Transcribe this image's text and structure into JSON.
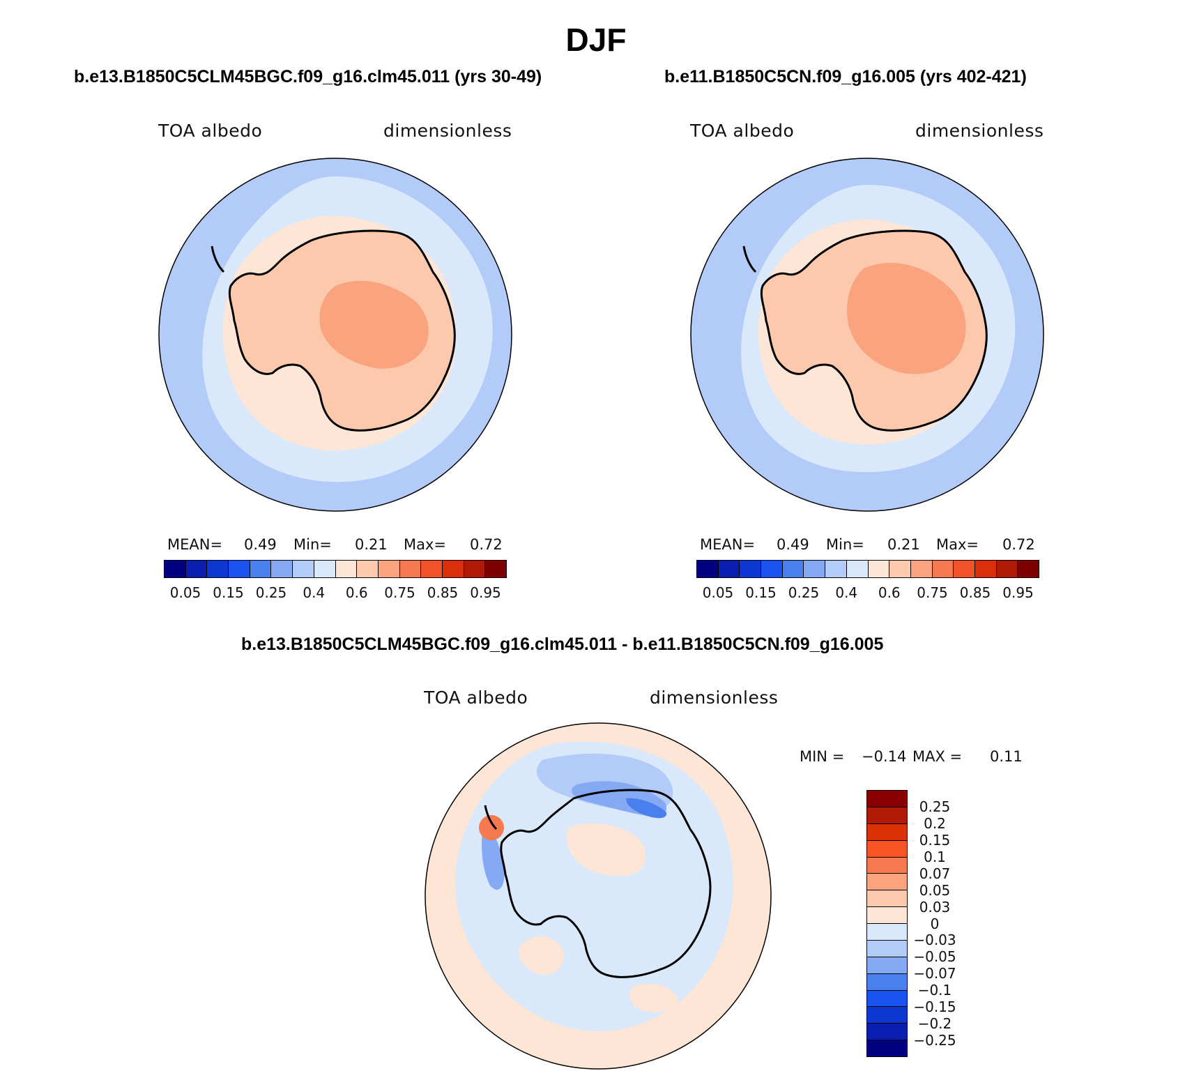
{
  "title": "DJF",
  "panels": [
    {
      "case_title": "b.e13.B1850C5CLM45BGC.f09_g16.clm45.011 (yrs 30-49)",
      "variable": "TOA albedo",
      "units": "dimensionless",
      "stats": {
        "mean_label": "MEAN=",
        "mean": "0.49",
        "min_label": "Min=",
        "min": "0.21",
        "max_label": "Max=",
        "max": "0.72"
      }
    },
    {
      "case_title": "b.e11.B1850C5CN.f09_g16.005 (yrs 402-421)",
      "variable": "TOA albedo",
      "units": "dimensionless",
      "stats": {
        "mean_label": "MEAN=",
        "mean": "0.49",
        "min_label": "Min=",
        "min": "0.21",
        "max_label": "Max=",
        "max": "0.72"
      }
    }
  ],
  "abs_colorbar": {
    "colors": [
      "#000080",
      "#0a1fb0",
      "#0c37d2",
      "#1a54f0",
      "#4a80ee",
      "#85aaf3",
      "#b2cbf8",
      "#d9e8fb",
      "#fde6d5",
      "#fdc9ac",
      "#f9a47f",
      "#f57a4f",
      "#f2532a",
      "#da2e0d",
      "#ae1a06",
      "#7c0000"
    ],
    "labels": [
      "0.05",
      "0.15",
      "0.25",
      "0.4",
      "0.6",
      "0.75",
      "0.85",
      "0.95"
    ]
  },
  "diff_panel": {
    "case_title": "b.e13.B1850C5CLM45BGC.f09_g16.clm45.011 - b.e11.B1850C5CN.f09_g16.005",
    "variable": "TOA albedo",
    "units": "dimensionless",
    "stats": {
      "min_label": "MIN =",
      "min": "−0.14",
      "max_label": "MAX =",
      "max": "0.11"
    }
  },
  "diff_colorbar": {
    "colors": [
      "#8a0000",
      "#b01a06",
      "#dc3006",
      "#fa5422",
      "#f57a4f",
      "#f9a47f",
      "#fdc9ac",
      "#fde6d5",
      "#d9e8fb",
      "#b2cbf8",
      "#85aaf3",
      "#4a80ee",
      "#1a54f0",
      "#0c37d2",
      "#0a1fb0",
      "#000080"
    ],
    "labels": [
      "0.25",
      "0.2",
      "0.15",
      "0.1",
      "0.07",
      "0.05",
      "0.03",
      "0",
      "−0.03",
      "−0.05",
      "−0.07",
      "−0.1",
      "−0.15",
      "−0.2",
      "−0.25"
    ]
  },
  "map_colors": {
    "outer_ocean": "#b2cbf8",
    "mid_ocean": "#d9e8fb",
    "sea_ice": "#fde6d5",
    "continent": "#fdc9ac",
    "interior": "#f9a47f",
    "diff_background": "#fde6d5",
    "diff_negative": "#d9e8fb",
    "diff_neg2": "#b2cbf8",
    "diff_neg3": "#85aaf3",
    "diff_neg4": "#4a80ee",
    "diff_pos": "#f57a4f"
  }
}
